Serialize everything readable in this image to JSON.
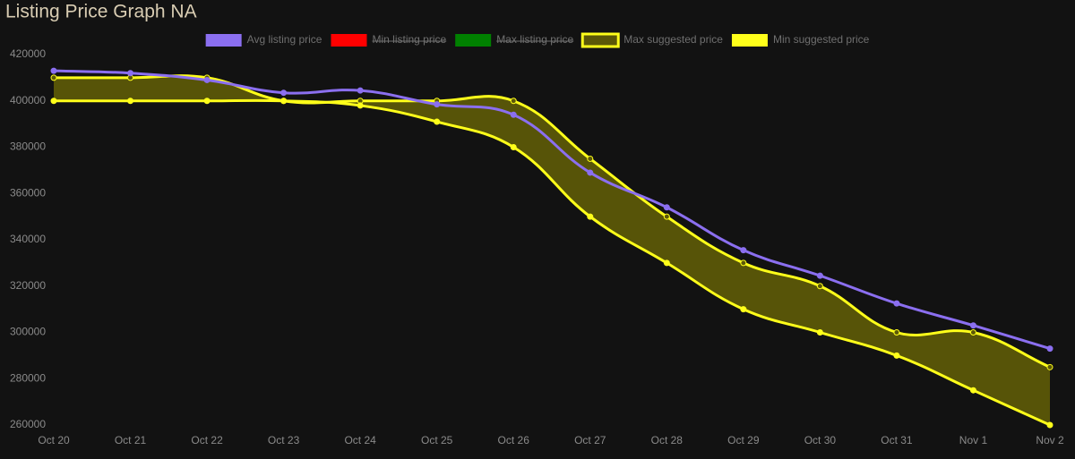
{
  "chart_data": {
    "type": "line",
    "title": "Listing Price Graph NA",
    "categories": [
      "Oct 20",
      "Oct 21",
      "Oct 22",
      "Oct 23",
      "Oct 24",
      "Oct 25",
      "Oct 26",
      "Oct 27",
      "Oct 28",
      "Oct 29",
      "Oct 30",
      "Oct 31",
      "Nov 1",
      "Nov 2"
    ],
    "series": [
      {
        "name": "Avg listing price",
        "color": "#8b6ff0",
        "values": [
          413000,
          412000,
          409000,
          403500,
          404500,
          398500,
          394000,
          369000,
          354000,
          335500,
          324500,
          312500,
          303000,
          293000
        ]
      },
      {
        "name": "Min listing price",
        "color": "#ff0000",
        "hidden": true
      },
      {
        "name": "Max listing price",
        "color": "#008000",
        "hidden": true
      },
      {
        "name": "Max suggested price",
        "color": "#ffff1a",
        "fill_color": "#5c5808",
        "values": [
          410000,
          410000,
          410000,
          400000,
          400000,
          400000,
          400000,
          375000,
          350000,
          330000,
          320000,
          300000,
          300000,
          285000
        ]
      },
      {
        "name": "Min suggested price",
        "color": "#ffff1a",
        "values": [
          400000,
          400000,
          400000,
          400000,
          398000,
          391000,
          380000,
          350000,
          330000,
          310000,
          300000,
          290000,
          275000,
          260000
        ]
      }
    ],
    "ylim": [
      260000,
      420000
    ],
    "yticks": [
      260000,
      280000,
      300000,
      320000,
      340000,
      360000,
      380000,
      400000,
      420000
    ],
    "legend": "top"
  }
}
